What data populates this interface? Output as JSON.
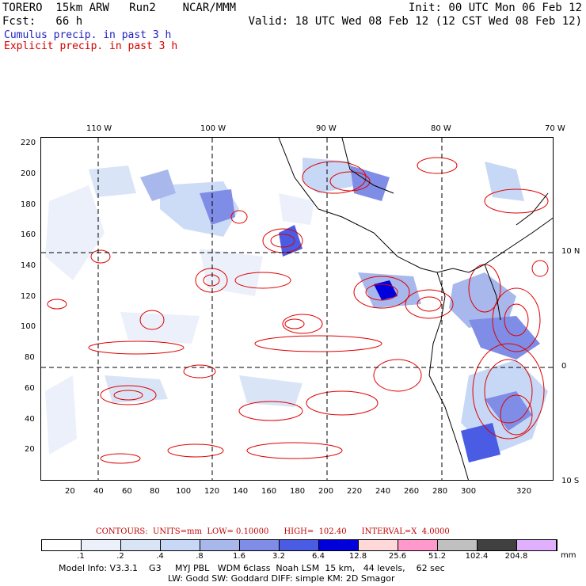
{
  "header": {
    "line1_left": "TORERO  15km ARW   Run2    NCAR/MMM",
    "line1_right": "Init: 00 UTC Mon 06 Feb 12",
    "line2_left": "Fcst:   66 h",
    "line2_right": "Valid: 18 UTC Wed 08 Feb 12 (12 CST Wed 08 Feb 12)"
  },
  "legend": {
    "cumulus": "Cumulus precip. in past 3 h",
    "explicit": "Explicit precip. in past 3 h",
    "cumulus_color": "#2020c0",
    "explicit_color": "#d00000"
  },
  "map": {
    "top_lon_labels": [
      "110 W",
      "100 W",
      "90 W",
      "80 W",
      "70 W"
    ],
    "left_y_labels": [
      "220",
      "200",
      "180",
      "160",
      "140",
      "120",
      "100",
      "80",
      "60",
      "40",
      "20"
    ],
    "bottom_x_labels": [
      "20",
      "40",
      "60",
      "80",
      "100",
      "120",
      "140",
      "160",
      "180",
      "200",
      "220",
      "240",
      "260",
      "280",
      "300",
      "320"
    ],
    "right_lat_labels": [
      "10 N",
      "0",
      "10 S"
    ]
  },
  "contours_info": {
    "text": "CONTOURS:  UNITS=mm  LOW= 0.10000      HIGH=  102.40      INTERVAL=X  4.0000"
  },
  "colorbar": {
    "colors": [
      "#ffffff",
      "#ebf0fa",
      "#d9e5f7",
      "#c6d8f5",
      "#a9b8ec",
      "#7f8de6",
      "#4a5ce3",
      "#0000dd",
      "#ffd9d9",
      "#ff99cc",
      "#c0c0c0",
      "#404040",
      "#e0b0ff"
    ],
    "labels": [
      ".1",
      ".2",
      ".4",
      ".8",
      "1.6",
      "3.2",
      "6.4",
      "12.8",
      "25.6",
      "51.2",
      "102.4",
      "204.8"
    ],
    "units": "mm"
  },
  "footer": {
    "line1": "Model Info: V3.3.1    G3     MYJ PBL   WDM 6class  Noah LSM  15 km,   44 levels,    62 sec",
    "line2": "LW: Godd SW: Goddard DIFF: simple KM: 2D Smagor"
  }
}
